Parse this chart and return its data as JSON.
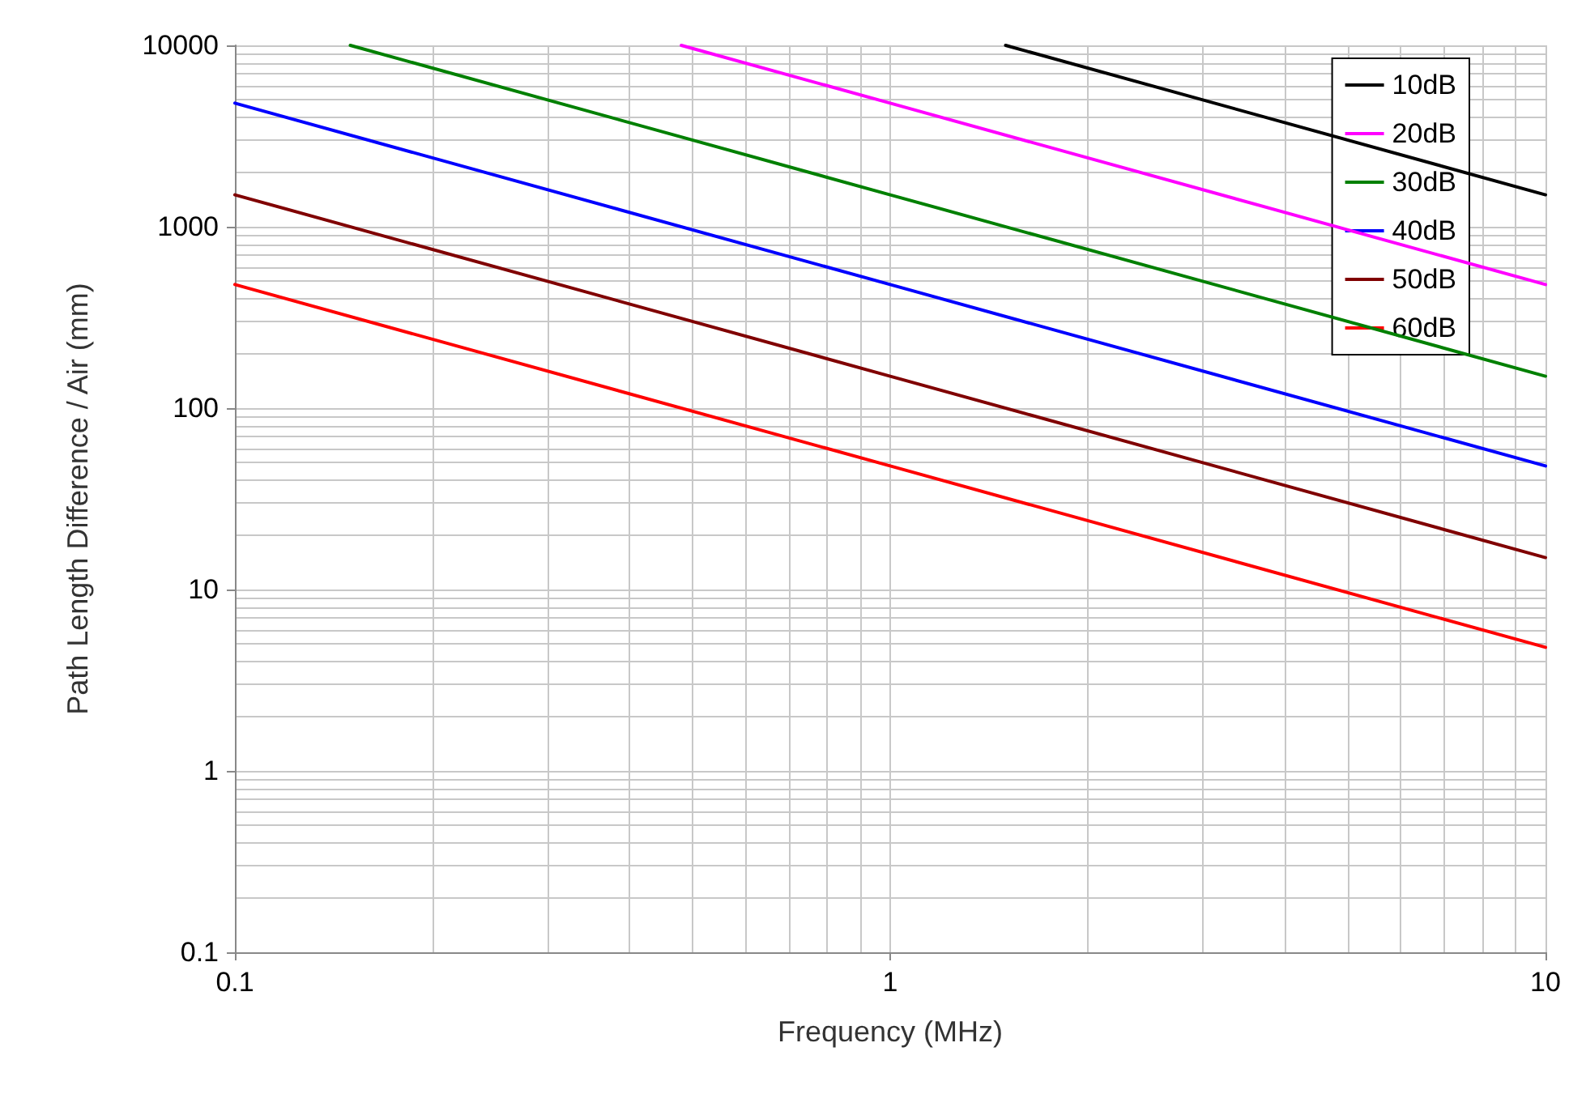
{
  "chart_data": {
    "type": "line",
    "xlabel": "Frequency (MHz)",
    "ylabel": "Path Length Difference / Air (mm)",
    "log": "xy",
    "grid": true,
    "legend": "top right",
    "marker": "none",
    "line_style": "solid",
    "xlim": [
      0.1,
      10
    ],
    "xticks": [
      0.1,
      1,
      10
    ],
    "ylim": [
      0.1,
      10000
    ],
    "yticks": [
      0.1,
      1,
      10,
      100,
      1000,
      10000
    ],
    "series": [
      {
        "name": "10dB",
        "color": "#000000",
        "x": [
          1.5,
          10
        ],
        "values": [
          10000,
          1500
        ]
      },
      {
        "name": "20dB",
        "color": "#ff00ff",
        "x": [
          0.48,
          1,
          10
        ],
        "values": [
          10000,
          4800,
          480
        ]
      },
      {
        "name": "30dB",
        "color": "#008000",
        "x": [
          0.15,
          1,
          10
        ],
        "values": [
          10000,
          1500,
          150
        ]
      },
      {
        "name": "40dB",
        "color": "#0000ff",
        "x": [
          0.1,
          1,
          10
        ],
        "values": [
          4800,
          480,
          48
        ]
      },
      {
        "name": "50dB",
        "color": "#800000",
        "x": [
          0.1,
          1,
          10
        ],
        "values": [
          1500,
          150,
          15
        ]
      },
      {
        "name": "60dB",
        "color": "#ff0000",
        "x": [
          0.1,
          1,
          10
        ],
        "values": [
          480,
          48,
          4.8
        ]
      }
    ]
  }
}
